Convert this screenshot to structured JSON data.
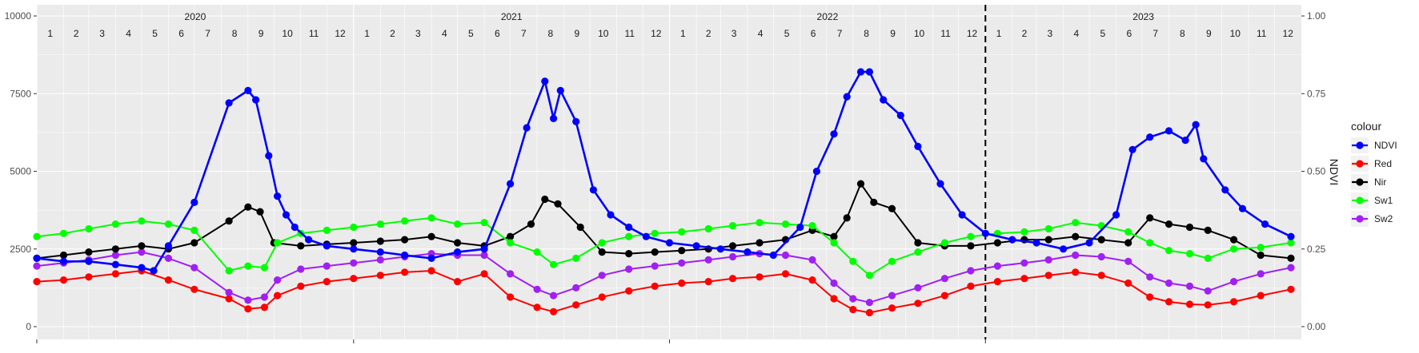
{
  "chart_data": {
    "type": "line",
    "title": "",
    "xlabel": "",
    "ylabel": "",
    "y2label": "NDVI",
    "ylim": [
      0,
      10000
    ],
    "y2lim": [
      0,
      1
    ],
    "yticks": [
      "0",
      "2500",
      "5000",
      "7500",
      "10000"
    ],
    "y2ticks": [
      "0.00",
      "0.25",
      "0.50",
      "0.75",
      "1.00"
    ],
    "grid": true,
    "legend": {
      "title": "colour",
      "position": "right"
    },
    "vline_date": "2023-01-01",
    "years": [
      "2020",
      "2021",
      "2022",
      "2023"
    ],
    "months": [
      "1",
      "2",
      "3",
      "4",
      "5",
      "6",
      "7",
      "8",
      "9",
      "10",
      "11",
      "12"
    ],
    "series": [
      {
        "name": "NDVI",
        "color": "#0000ff",
        "axis": "right",
        "x": [
          "2020-01-01",
          "2020-02-01",
          "2020-03-01",
          "2020-04-01",
          "2020-05-01",
          "2020-05-15",
          "2020-06-01",
          "2020-07-01",
          "2020-08-10",
          "2020-09-01",
          "2020-09-10",
          "2020-09-25",
          "2020-10-05",
          "2020-10-15",
          "2020-10-25",
          "2020-11-10",
          "2020-12-01",
          "2021-01-01",
          "2021-02-01",
          "2021-03-01",
          "2021-04-01",
          "2021-05-01",
          "2021-06-01",
          "2021-07-01",
          "2021-07-20",
          "2021-08-10",
          "2021-08-20",
          "2021-08-28",
          "2021-09-15",
          "2021-10-05",
          "2021-10-25",
          "2021-11-15",
          "2021-12-05",
          "2022-01-01",
          "2022-02-01",
          "2022-03-01",
          "2022-04-01",
          "2022-05-01",
          "2022-06-01",
          "2022-06-20",
          "2022-07-10",
          "2022-07-25",
          "2022-08-10",
          "2022-08-20",
          "2022-09-05",
          "2022-09-25",
          "2022-10-15",
          "2022-11-10",
          "2022-12-05",
          "2023-01-01",
          "2023-02-01",
          "2023-03-01",
          "2023-04-01",
          "2023-05-01",
          "2023-06-01",
          "2023-06-20",
          "2023-07-10",
          "2023-08-01",
          "2023-08-20",
          "2023-09-01",
          "2023-09-10",
          "2023-10-05",
          "2023-10-25",
          "2023-11-20",
          "2023-12-20"
        ],
        "values": [
          0.22,
          0.21,
          0.21,
          0.2,
          0.19,
          0.18,
          0.26,
          0.4,
          0.72,
          0.76,
          0.73,
          0.55,
          0.42,
          0.36,
          0.32,
          0.28,
          0.26,
          0.25,
          0.24,
          0.23,
          0.22,
          0.24,
          0.25,
          0.46,
          0.64,
          0.79,
          0.67,
          0.76,
          0.66,
          0.44,
          0.36,
          0.32,
          0.29,
          0.27,
          0.26,
          0.25,
          0.24,
          0.23,
          0.32,
          0.5,
          0.62,
          0.74,
          0.82,
          0.82,
          0.73,
          0.68,
          0.58,
          0.46,
          0.36,
          0.3,
          0.28,
          0.27,
          0.25,
          0.27,
          0.36,
          0.57,
          0.61,
          0.63,
          0.6,
          0.65,
          0.54,
          0.44,
          0.38,
          0.33,
          0.29
        ]
      },
      {
        "name": "Red",
        "color": "#ff0000",
        "axis": "left",
        "x": [
          "2020-01-01",
          "2020-02-01",
          "2020-03-01",
          "2020-04-01",
          "2020-05-01",
          "2020-06-01",
          "2020-07-01",
          "2020-08-10",
          "2020-09-01",
          "2020-09-20",
          "2020-10-05",
          "2020-11-01",
          "2020-12-01",
          "2021-01-01",
          "2021-02-01",
          "2021-03-01",
          "2021-04-01",
          "2021-05-01",
          "2021-06-01",
          "2021-07-01",
          "2021-08-01",
          "2021-08-20",
          "2021-09-15",
          "2021-10-15",
          "2021-11-15",
          "2021-12-15",
          "2022-01-15",
          "2022-02-15",
          "2022-03-15",
          "2022-04-15",
          "2022-05-15",
          "2022-06-15",
          "2022-07-10",
          "2022-08-01",
          "2022-08-20",
          "2022-09-15",
          "2022-10-15",
          "2022-11-15",
          "2022-12-15",
          "2023-01-15",
          "2023-02-15",
          "2023-03-15",
          "2023-04-15",
          "2023-05-15",
          "2023-06-15",
          "2023-07-10",
          "2023-08-01",
          "2023-08-25",
          "2023-09-15",
          "2023-10-15",
          "2023-11-15",
          "2023-12-20"
        ],
        "values": [
          1450,
          1500,
          1600,
          1700,
          1800,
          1500,
          1200,
          900,
          570,
          620,
          1000,
          1300,
          1450,
          1550,
          1650,
          1750,
          1800,
          1450,
          1700,
          950,
          620,
          480,
          700,
          950,
          1150,
          1300,
          1400,
          1450,
          1550,
          1600,
          1700,
          1500,
          900,
          550,
          450,
          600,
          750,
          1000,
          1300,
          1450,
          1550,
          1650,
          1750,
          1650,
          1400,
          950,
          800,
          720,
          700,
          800,
          1000,
          1200
        ]
      },
      {
        "name": "Nir",
        "color": "#000000",
        "axis": "left",
        "x": [
          "2020-01-01",
          "2020-02-01",
          "2020-03-01",
          "2020-04-01",
          "2020-05-01",
          "2020-06-01",
          "2020-07-01",
          "2020-08-10",
          "2020-09-01",
          "2020-09-15",
          "2020-10-01",
          "2020-11-01",
          "2020-12-01",
          "2021-01-01",
          "2021-02-01",
          "2021-03-01",
          "2021-04-01",
          "2021-05-01",
          "2021-06-01",
          "2021-07-01",
          "2021-07-25",
          "2021-08-10",
          "2021-08-25",
          "2021-09-20",
          "2021-10-15",
          "2021-11-15",
          "2021-12-15",
          "2022-01-15",
          "2022-02-15",
          "2022-03-15",
          "2022-04-15",
          "2022-05-15",
          "2022-06-15",
          "2022-07-10",
          "2022-07-25",
          "2022-08-10",
          "2022-08-25",
          "2022-09-15",
          "2022-10-15",
          "2022-11-15",
          "2022-12-15",
          "2023-01-15",
          "2023-02-15",
          "2023-03-15",
          "2023-04-15",
          "2023-05-15",
          "2023-06-15",
          "2023-07-10",
          "2023-08-01",
          "2023-08-25",
          "2023-09-15",
          "2023-10-15",
          "2023-11-15",
          "2023-12-20"
        ],
        "values": [
          2200,
          2300,
          2400,
          2500,
          2600,
          2500,
          2700,
          3400,
          3850,
          3700,
          2700,
          2600,
          2650,
          2700,
          2750,
          2800,
          2900,
          2700,
          2600,
          2900,
          3300,
          4100,
          3950,
          3200,
          2400,
          2350,
          2400,
          2450,
          2500,
          2600,
          2700,
          2800,
          3100,
          2900,
          3500,
          4600,
          4000,
          3800,
          2700,
          2600,
          2600,
          2700,
          2800,
          2800,
          2900,
          2800,
          2700,
          3500,
          3300,
          3200,
          3100,
          2800,
          2300,
          2200
        ]
      },
      {
        "name": "Sw1",
        "color": "#00ff00",
        "axis": "left",
        "x": [
          "2020-01-01",
          "2020-02-01",
          "2020-03-01",
          "2020-04-01",
          "2020-05-01",
          "2020-06-01",
          "2020-07-01",
          "2020-08-10",
          "2020-09-01",
          "2020-09-20",
          "2020-10-05",
          "2020-11-01",
          "2020-12-01",
          "2021-01-01",
          "2021-02-01",
          "2021-03-01",
          "2021-04-01",
          "2021-05-01",
          "2021-06-01",
          "2021-07-01",
          "2021-08-01",
          "2021-08-20",
          "2021-09-15",
          "2021-10-15",
          "2021-11-15",
          "2021-12-15",
          "2022-01-15",
          "2022-02-15",
          "2022-03-15",
          "2022-04-15",
          "2022-05-15",
          "2022-06-15",
          "2022-07-10",
          "2022-08-01",
          "2022-08-20",
          "2022-09-15",
          "2022-10-15",
          "2022-11-15",
          "2022-12-15",
          "2023-01-15",
          "2023-02-15",
          "2023-03-15",
          "2023-04-15",
          "2023-05-15",
          "2023-06-15",
          "2023-07-10",
          "2023-08-01",
          "2023-08-25",
          "2023-09-15",
          "2023-10-15",
          "2023-11-15",
          "2023-12-20"
        ],
        "values": [
          2900,
          3000,
          3150,
          3300,
          3400,
          3300,
          3100,
          1800,
          1950,
          1900,
          2700,
          3000,
          3100,
          3200,
          3300,
          3400,
          3500,
          3300,
          3350,
          2700,
          2400,
          2000,
          2200,
          2700,
          2900,
          3000,
          3050,
          3150,
          3250,
          3350,
          3300,
          3250,
          2700,
          2100,
          1650,
          2100,
          2400,
          2700,
          2900,
          3000,
          3050,
          3150,
          3350,
          3250,
          3050,
          2700,
          2450,
          2350,
          2200,
          2500,
          2550,
          2700
        ]
      },
      {
        "name": "Sw2",
        "color": "#a020f0",
        "axis": "left",
        "x": [
          "2020-01-01",
          "2020-02-01",
          "2020-03-01",
          "2020-04-01",
          "2020-05-01",
          "2020-06-01",
          "2020-07-01",
          "2020-08-10",
          "2020-09-01",
          "2020-09-20",
          "2020-10-05",
          "2020-11-01",
          "2020-12-01",
          "2021-01-01",
          "2021-02-01",
          "2021-03-01",
          "2021-04-01",
          "2021-05-01",
          "2021-06-01",
          "2021-07-01",
          "2021-08-01",
          "2021-08-20",
          "2021-09-15",
          "2021-10-15",
          "2021-11-15",
          "2021-12-15",
          "2022-01-15",
          "2022-02-15",
          "2022-03-15",
          "2022-04-15",
          "2022-05-15",
          "2022-06-15",
          "2022-07-10",
          "2022-08-01",
          "2022-08-20",
          "2022-09-15",
          "2022-10-15",
          "2022-11-15",
          "2022-12-15",
          "2023-01-15",
          "2023-02-15",
          "2023-03-15",
          "2023-04-15",
          "2023-05-15",
          "2023-06-15",
          "2023-07-10",
          "2023-08-01",
          "2023-08-25",
          "2023-09-15",
          "2023-10-15",
          "2023-11-15",
          "2023-12-20"
        ],
        "values": [
          1950,
          2050,
          2150,
          2300,
          2400,
          2200,
          1900,
          1100,
          850,
          950,
          1500,
          1850,
          1950,
          2050,
          2150,
          2250,
          2350,
          2300,
          2300,
          1700,
          1200,
          1000,
          1250,
          1650,
          1850,
          1950,
          2050,
          2150,
          2250,
          2350,
          2300,
          2150,
          1400,
          900,
          780,
          1000,
          1250,
          1550,
          1800,
          1950,
          2050,
          2150,
          2300,
          2250,
          2100,
          1600,
          1400,
          1300,
          1150,
          1450,
          1700,
          1900
        ]
      }
    ]
  }
}
